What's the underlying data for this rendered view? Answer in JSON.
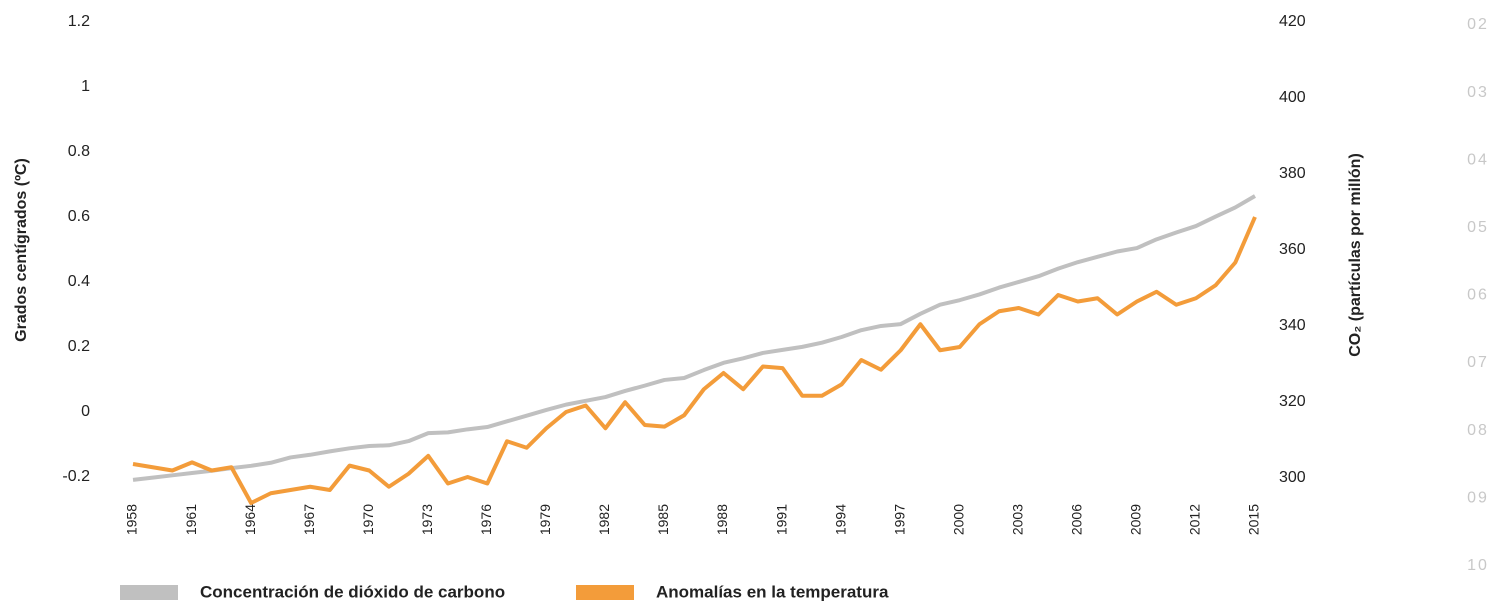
{
  "chart_data": {
    "type": "line",
    "ylabel": "Grados centígrados (ºC)",
    "y2label": "CO₂ (partículas por millón)",
    "x": [
      1958,
      1959,
      1960,
      1961,
      1962,
      1963,
      1964,
      1965,
      1966,
      1967,
      1968,
      1969,
      1970,
      1971,
      1972,
      1973,
      1974,
      1975,
      1976,
      1977,
      1978,
      1979,
      1980,
      1981,
      1982,
      1983,
      1984,
      1985,
      1986,
      1987,
      1988,
      1989,
      1990,
      1991,
      1992,
      1993,
      1994,
      1995,
      1996,
      1997,
      1998,
      1999,
      2000,
      2001,
      2002,
      2003,
      2004,
      2005,
      2006,
      2007,
      2008,
      2009,
      2010,
      2011,
      2012,
      2013,
      2014,
      2015
    ],
    "xlim": [
      1958,
      2015
    ],
    "xticks": [
      1958,
      1961,
      1964,
      1967,
      1970,
      1973,
      1976,
      1979,
      1982,
      1985,
      1988,
      1991,
      1994,
      1997,
      2000,
      2003,
      2006,
      2009,
      2012,
      2015
    ],
    "ylim": [
      -0.3,
      1.2
    ],
    "yticks": [
      -0.2,
      0,
      0.2,
      0.4,
      0.6,
      0.8,
      1,
      1.2
    ],
    "y2lim": [
      291.7,
      420
    ],
    "y2ticks": [
      300,
      320,
      340,
      360,
      380,
      400,
      420
    ],
    "series": [
      {
        "name": "Concentración de dióxido de carbono",
        "color": "#c0c0c0",
        "axis": "y2",
        "values": [
          299.5,
          300.1,
          300.7,
          301.3,
          301.9,
          302.6,
          303.2,
          304.0,
          305.4,
          306.1,
          307.0,
          307.8,
          308.4,
          308.6,
          309.7,
          311.8,
          312.0,
          312.8,
          313.4,
          314.9,
          316.4,
          317.9,
          319.3,
          320.3,
          321.3,
          322.9,
          324.3,
          325.8,
          326.3,
          328.4,
          330.3,
          331.5,
          332.9,
          333.7,
          334.5,
          335.6,
          337.1,
          338.9,
          340.0,
          340.5,
          343.2,
          345.6,
          346.8,
          348.3,
          350.1,
          351.6,
          353.1,
          355.1,
          356.8,
          358.2,
          359.6,
          360.5,
          362.8,
          364.6,
          366.3,
          368.8,
          371.2,
          374.2
        ]
      },
      {
        "name": "Anomalías en la temperatura",
        "color": "#f39c3a",
        "values": [
          -0.16,
          -0.17,
          -0.18,
          -0.155,
          -0.18,
          -0.17,
          -0.28,
          -0.25,
          -0.24,
          -0.23,
          -0.24,
          -0.165,
          -0.18,
          -0.23,
          -0.19,
          -0.135,
          -0.22,
          -0.2,
          -0.22,
          -0.09,
          -0.11,
          -0.05,
          0.0,
          0.02,
          -0.05,
          0.03,
          -0.04,
          -0.045,
          -0.01,
          0.07,
          0.12,
          0.07,
          0.14,
          0.135,
          0.05,
          0.05,
          0.085,
          0.16,
          0.13,
          0.19,
          0.27,
          0.19,
          0.2,
          0.27,
          0.31,
          0.32,
          0.3,
          0.36,
          0.34,
          0.35,
          0.3,
          0.34,
          0.37,
          0.33,
          0.35,
          0.39,
          0.46,
          0.6
        ]
      }
    ]
  },
  "side_labels": [
    "02",
    "03",
    "04",
    "05",
    "06",
    "07",
    "08",
    "09",
    "10"
  ]
}
